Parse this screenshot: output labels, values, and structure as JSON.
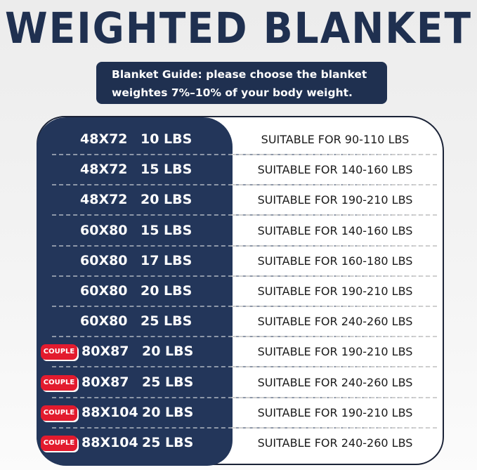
{
  "title": "WEIGHTED BLANKET",
  "guide": {
    "line1": "Blanket Guide: please choose the blanket",
    "line2": "weightes 7%–10% of your body weight."
  },
  "colors": {
    "navy": "#23365a",
    "badge": "#e31b2e"
  },
  "rows": [
    {
      "badge": "",
      "size": "48X72",
      "weight": "10 LBS",
      "suitable": "SUITABLE FOR 90-110 LBS"
    },
    {
      "badge": "",
      "size": "48X72",
      "weight": "15 LBS",
      "suitable": "SUITABLE FOR 140-160 LBS"
    },
    {
      "badge": "",
      "size": "48X72",
      "weight": "20 LBS",
      "suitable": "SUITABLE FOR 190-210 LBS"
    },
    {
      "badge": "",
      "size": "60X80",
      "weight": "15 LBS",
      "suitable": "SUITABLE FOR 140-160 LBS"
    },
    {
      "badge": "",
      "size": "60X80",
      "weight": "17 LBS",
      "suitable": "SUITABLE FOR 160-180 LBS"
    },
    {
      "badge": "",
      "size": "60X80",
      "weight": "20 LBS",
      "suitable": "SUITABLE FOR 190-210 LBS"
    },
    {
      "badge": "",
      "size": "60X80",
      "weight": "25 LBS",
      "suitable": "SUITABLE FOR 240-260 LBS"
    },
    {
      "badge": "COUPLE",
      "size": "80X87",
      "weight": "20 LBS",
      "suitable": "SUITABLE FOR 190-210 LBS"
    },
    {
      "badge": "COUPLE",
      "size": "80X87",
      "weight": "25 LBS",
      "suitable": "SUITABLE FOR 240-260 LBS"
    },
    {
      "badge": "COUPLE",
      "size": "88X104",
      "weight": "20 LBS",
      "suitable": "SUITABLE FOR 190-210 LBS"
    },
    {
      "badge": "COUPLE",
      "size": "88X104",
      "weight": "25 LBS",
      "suitable": "SUITABLE FOR 240-260 LBS"
    }
  ]
}
